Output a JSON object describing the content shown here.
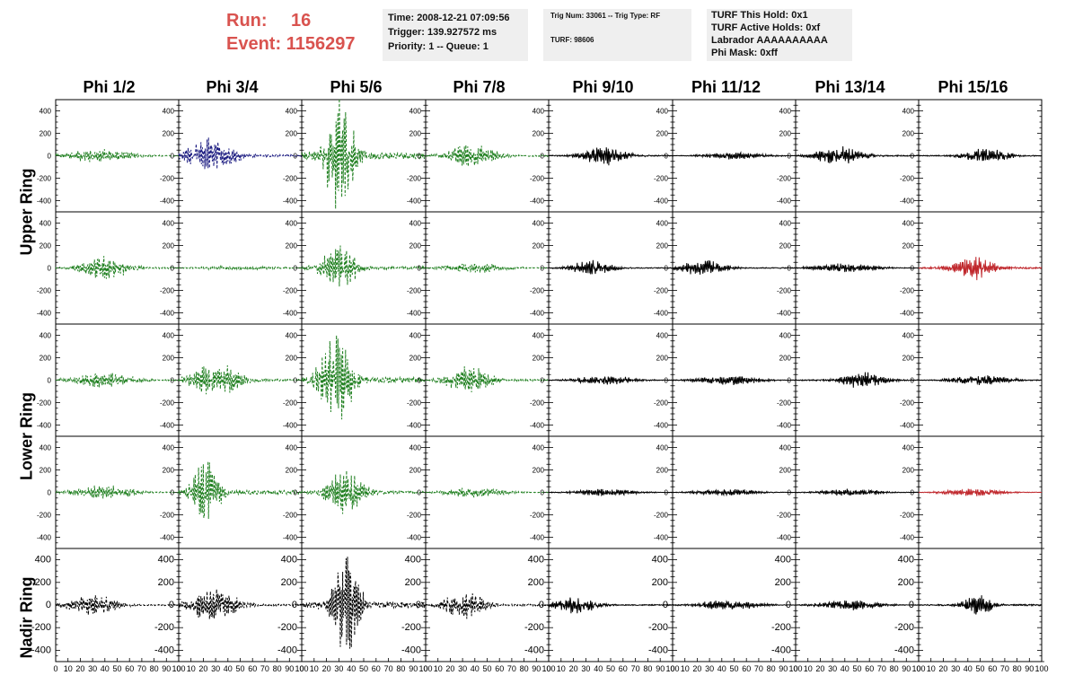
{
  "header": {
    "run_label": "Run:",
    "run_value": "16",
    "event_label": "Event:",
    "event_value": "1156297"
  },
  "info_time": {
    "time": "Time: 2008-12-21 07:09:56",
    "trigger": "Trigger: 139.927572 ms",
    "priority": "Priority: 1 -- Queue: 1"
  },
  "info_trig": {
    "trig": "Trig Num: 33061 -- Trig Type: RF",
    "turf": "TURF: 98606"
  },
  "info_turf": {
    "hold": "TURF This Hold: 0x1",
    "active": "TURF Active Holds: 0xf",
    "labrador": "Labrador AAAAAAAAAA",
    "phimask": "Phi Mask: 0xff"
  },
  "columns": [
    "Phi 1/2",
    "Phi 3/4",
    "Phi 5/6",
    "Phi 7/8",
    "Phi 9/10",
    "Phi 11/12",
    "Phi 13/14",
    "Phi 15/16"
  ],
  "rows": [
    "Upper Ring",
    "Lower Ring",
    "Nadir Ring"
  ],
  "y_ticks": [
    "400",
    "200",
    "0",
    "-200",
    "-400"
  ],
  "x_ticks": [
    "0",
    "10",
    "20",
    "30",
    "40",
    "50",
    "60",
    "70",
    "80",
    "90",
    "100"
  ],
  "colors": {
    "green": "#1f7f1f",
    "blue": "#1a1a80",
    "black": "#000000",
    "red": "#c0282d",
    "run_text": "#d9534f",
    "info_bg": "#efefef"
  },
  "chart_data": {
    "type": "line",
    "ylim": [
      -500,
      500
    ],
    "xlim": [
      0,
      100
    ],
    "panels": [
      [
        {
          "color": "green",
          "dashed": true,
          "amp": 60,
          "center": 35,
          "width": 40
        },
        {
          "color": "blue",
          "dashed": true,
          "amp": 150,
          "center": 25,
          "width": 30
        },
        {
          "color": "green",
          "dashed": true,
          "amp": 500,
          "center": 30,
          "width": 18
        },
        {
          "color": "green",
          "dashed": true,
          "amp": 100,
          "center": 38,
          "width": 30
        },
        {
          "color": "black",
          "dashed": false,
          "amp": 80,
          "center": 45,
          "width": 28
        },
        {
          "color": "black",
          "dashed": false,
          "amp": 30,
          "center": 50,
          "width": 40
        },
        {
          "color": "black",
          "dashed": false,
          "amp": 80,
          "center": 35,
          "width": 30
        },
        {
          "color": "black",
          "dashed": false,
          "amp": 60,
          "center": 55,
          "width": 30
        }
      ],
      [
        {
          "color": "green",
          "dashed": true,
          "amp": 100,
          "center": 40,
          "width": 30
        },
        {
          "color": "green",
          "dashed": true,
          "amp": 15,
          "center": 50,
          "width": 60
        },
        {
          "color": "green",
          "dashed": true,
          "amp": 200,
          "center": 30,
          "width": 22
        },
        {
          "color": "green",
          "dashed": true,
          "amp": 40,
          "center": 40,
          "width": 40
        },
        {
          "color": "black",
          "dashed": false,
          "amp": 60,
          "center": 35,
          "width": 28
        },
        {
          "color": "black",
          "dashed": false,
          "amp": 70,
          "center": 25,
          "width": 28
        },
        {
          "color": "black",
          "dashed": false,
          "amp": 40,
          "center": 40,
          "width": 40
        },
        {
          "color": "red",
          "dashed": false,
          "amp": 100,
          "center": 45,
          "width": 28
        }
      ],
      [
        {
          "color": "green",
          "dashed": true,
          "amp": 60,
          "center": 40,
          "width": 40
        },
        {
          "color": "green",
          "dashed": true,
          "amp": 150,
          "center": 30,
          "width": 30
        },
        {
          "color": "green",
          "dashed": true,
          "amp": 420,
          "center": 28,
          "width": 20
        },
        {
          "color": "green",
          "dashed": true,
          "amp": 120,
          "center": 35,
          "width": 28
        },
        {
          "color": "black",
          "dashed": false,
          "amp": 40,
          "center": 45,
          "width": 40
        },
        {
          "color": "black",
          "dashed": false,
          "amp": 40,
          "center": 45,
          "width": 40
        },
        {
          "color": "black",
          "dashed": false,
          "amp": 70,
          "center": 55,
          "width": 30
        },
        {
          "color": "black",
          "dashed": false,
          "amp": 40,
          "center": 50,
          "width": 40
        }
      ],
      [
        {
          "color": "green",
          "dashed": true,
          "amp": 60,
          "center": 40,
          "width": 40
        },
        {
          "color": "green",
          "dashed": true,
          "amp": 280,
          "center": 22,
          "width": 18
        },
        {
          "color": "green",
          "dashed": true,
          "amp": 180,
          "center": 35,
          "width": 24
        },
        {
          "color": "green",
          "dashed": true,
          "amp": 40,
          "center": 40,
          "width": 40
        },
        {
          "color": "black",
          "dashed": false,
          "amp": 30,
          "center": 45,
          "width": 40
        },
        {
          "color": "black",
          "dashed": false,
          "amp": 30,
          "center": 45,
          "width": 40
        },
        {
          "color": "black",
          "dashed": false,
          "amp": 30,
          "center": 45,
          "width": 40
        },
        {
          "color": "red",
          "dashed": false,
          "amp": 30,
          "center": 45,
          "width": 40
        }
      ],
      [
        {
          "color": "black",
          "dashed": true,
          "amp": 90,
          "center": 30,
          "width": 30
        },
        {
          "color": "black",
          "dashed": true,
          "amp": 140,
          "center": 28,
          "width": 30
        },
        {
          "color": "black",
          "dashed": true,
          "amp": 400,
          "center": 35,
          "width": 18
        },
        {
          "color": "black",
          "dashed": true,
          "amp": 120,
          "center": 32,
          "width": 26
        },
        {
          "color": "black",
          "dashed": false,
          "amp": 70,
          "center": 22,
          "width": 28
        },
        {
          "color": "black",
          "dashed": false,
          "amp": 40,
          "center": 45,
          "width": 40
        },
        {
          "color": "black",
          "dashed": false,
          "amp": 40,
          "center": 45,
          "width": 40
        },
        {
          "color": "black",
          "dashed": false,
          "amp": 100,
          "center": 48,
          "width": 18
        }
      ]
    ]
  }
}
